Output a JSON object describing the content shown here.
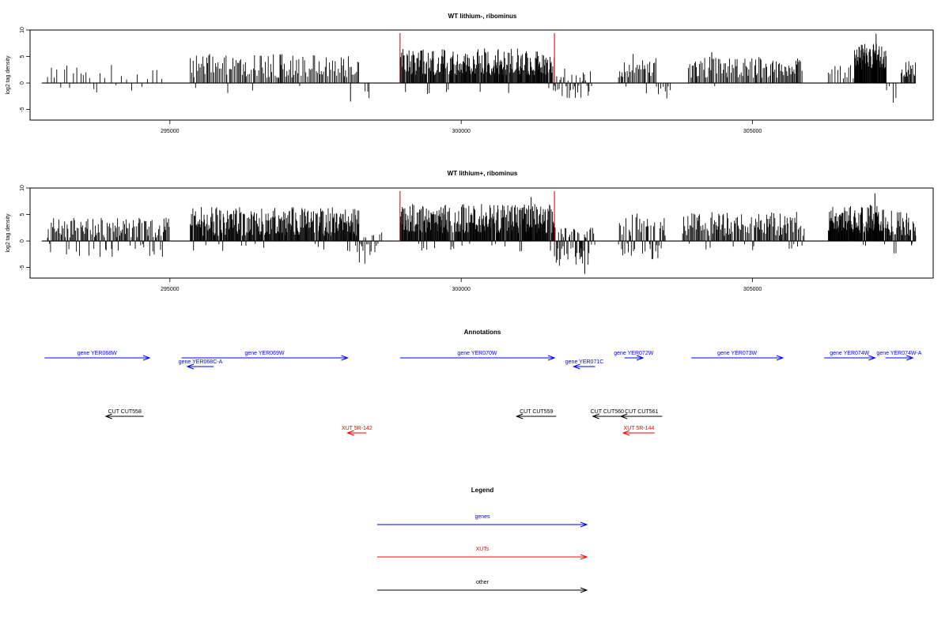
{
  "chart_data": [
    {
      "type": "bar",
      "title": "WT lithium-, ribominus",
      "ylabel": "log2 tag density",
      "xlim": [
        292600,
        308100
      ],
      "ylim": [
        -7,
        10
      ],
      "yticks": [
        -5,
        0,
        5,
        10
      ],
      "xticks": [
        295000,
        300000,
        305000
      ],
      "baseline": [
        292800,
        307800
      ],
      "red_markers": [
        298950,
        301600
      ],
      "segments": [
        {
          "x": [
            292900,
            293800
          ],
          "pos": [
            0.6,
            3.5
          ],
          "neg": [
            -0.4,
            -1.8
          ],
          "density": 0.018,
          "neg_prob": 0.15
        },
        {
          "x": [
            293800,
            294900
          ],
          "pos": [
            0.6,
            3.5
          ],
          "neg": [
            -0.4,
            -1.8
          ],
          "density": 0.012,
          "neg_prob": 0.12
        },
        {
          "x": [
            295350,
            298250
          ],
          "pos": [
            1.0,
            5.5
          ],
          "neg": [
            -0.5,
            -3.2
          ],
          "density": 0.045,
          "neg_prob": 0.04
        },
        {
          "x": [
            298350,
            298450
          ],
          "pos": [
            0,
            0
          ],
          "neg": [
            -1.5,
            -3.0
          ],
          "density": 0.03,
          "neg_prob": 1.0
        },
        {
          "x": [
            298950,
            301600
          ],
          "pos": [
            1.5,
            6.5
          ],
          "neg": [
            -0.5,
            -2.5
          ],
          "density": 0.09,
          "neg_prob": 0.03
        },
        {
          "x": [
            301600,
            302250
          ],
          "pos": [
            0.3,
            3.0
          ],
          "neg": [
            -0.5,
            -3.0
          ],
          "density": 0.05,
          "neg_prob": 0.6
        },
        {
          "x": [
            302700,
            303350
          ],
          "pos": [
            1.0,
            5.5
          ],
          "neg": [
            -0.5,
            -2.0
          ],
          "density": 0.05,
          "neg_prob": 0.05
        },
        {
          "x": [
            303350,
            303600
          ],
          "pos": [
            0,
            0
          ],
          "neg": [
            -0.5,
            -3.2
          ],
          "density": 0.03,
          "neg_prob": 1.0
        },
        {
          "x": [
            303900,
            305850
          ],
          "pos": [
            1.0,
            5.0
          ],
          "neg": [
            -0.5,
            -1.5
          ],
          "density": 0.05,
          "neg_prob": 0.02
        },
        {
          "x": [
            306300,
            306750
          ],
          "pos": [
            0.8,
            3.5
          ],
          "neg": [
            -0.5,
            -1.0
          ],
          "density": 0.025,
          "neg_prob": 0.02
        },
        {
          "x": [
            306750,
            307300
          ],
          "pos": [
            2.5,
            7.5
          ],
          "neg": [
            -0.5,
            -1.0
          ],
          "density": 0.12,
          "neg_prob": 0.0
        },
        {
          "x": [
            307300,
            307500
          ],
          "pos": [
            0,
            0
          ],
          "neg": [
            -0.5,
            -4.2
          ],
          "density": 0.02,
          "neg_prob": 1.0
        },
        {
          "x": [
            307550,
            307800
          ],
          "pos": [
            1.0,
            4.5
          ],
          "neg": [
            -0.5,
            -1.0
          ],
          "density": 0.06,
          "neg_prob": 0.0
        }
      ],
      "peaks": [
        {
          "x": 307120,
          "y": 9.3
        },
        {
          "x": 304300,
          "y": 5.8
        },
        {
          "x": 296900,
          "y": 5.3
        },
        {
          "x": 300400,
          "y": 6.5
        },
        {
          "x": 298100,
          "y": -3.5
        }
      ]
    },
    {
      "type": "bar",
      "title": "WT lithium+, ribominus",
      "ylabel": "log2 tag density",
      "xlim": [
        292600,
        308100
      ],
      "ylim": [
        -7,
        10
      ],
      "yticks": [
        -5,
        0,
        5,
        10
      ],
      "xticks": [
        295000,
        300000,
        305000
      ],
      "baseline": [
        292800,
        307800
      ],
      "red_markers": [
        298950,
        301600
      ],
      "segments": [
        {
          "x": [
            292900,
            295000
          ],
          "pos": [
            0.6,
            4.5
          ],
          "neg": [
            -0.5,
            -3.0
          ],
          "density": 0.06,
          "neg_prob": 0.25
        },
        {
          "x": [
            295350,
            298250
          ],
          "pos": [
            1.0,
            6.5
          ],
          "neg": [
            -0.5,
            -2.0
          ],
          "density": 0.09,
          "neg_prob": 0.03
        },
        {
          "x": [
            298000,
            298650
          ],
          "pos": [
            0.5,
            2.0
          ],
          "neg": [
            -0.5,
            -4.5
          ],
          "density": 0.04,
          "neg_prob": 0.75
        },
        {
          "x": [
            298950,
            301600
          ],
          "pos": [
            1.5,
            7.0
          ],
          "neg": [
            -0.5,
            -2.5
          ],
          "density": 0.1,
          "neg_prob": 0.05
        },
        {
          "x": [
            301600,
            302300
          ],
          "pos": [
            0.5,
            3.0
          ],
          "neg": [
            -0.5,
            -5.0
          ],
          "density": 0.07,
          "neg_prob": 0.65
        },
        {
          "x": [
            302700,
            303500
          ],
          "pos": [
            1.0,
            5.5
          ],
          "neg": [
            -0.5,
            -3.5
          ],
          "density": 0.06,
          "neg_prob": 0.3
        },
        {
          "x": [
            303800,
            305900
          ],
          "pos": [
            1.0,
            5.5
          ],
          "neg": [
            -0.5,
            -2.0
          ],
          "density": 0.06,
          "neg_prob": 0.05
        },
        {
          "x": [
            306300,
            307250
          ],
          "pos": [
            1.5,
            7.0
          ],
          "neg": [
            -0.5,
            -1.5
          ],
          "density": 0.12,
          "neg_prob": 0.02
        },
        {
          "x": [
            307250,
            307800
          ],
          "pos": [
            1.0,
            6.0
          ],
          "neg": [
            -0.5,
            -2.5
          ],
          "density": 0.08,
          "neg_prob": 0.15
        }
      ],
      "peaks": [
        {
          "x": 307100,
          "y": 9.0
        },
        {
          "x": 302120,
          "y": -6.2
        },
        {
          "x": 296800,
          "y": 6.0
        },
        {
          "x": 301200,
          "y": 8.3
        }
      ]
    }
  ],
  "annotations": {
    "title": "Annotations",
    "features": [
      {
        "label": "gene YER068W",
        "start": 292850,
        "end": 294650,
        "strand": "+",
        "class": "gene",
        "row": 0
      },
      {
        "label": "gene YER068C-A",
        "start": 295300,
        "end": 295750,
        "strand": "-",
        "class": "gene",
        "row": 1
      },
      {
        "label": "gene YER069W",
        "start": 295200,
        "end": 298050,
        "strand": "+",
        "class": "gene",
        "row": 0
      },
      {
        "label": "gene YER070W",
        "start": 298950,
        "end": 301600,
        "strand": "+",
        "class": "gene",
        "row": 0
      },
      {
        "label": "gene YER071C",
        "start": 301930,
        "end": 302300,
        "strand": "-",
        "class": "gene",
        "row": 1
      },
      {
        "label": "gene YER072W",
        "start": 302800,
        "end": 303120,
        "strand": "+",
        "class": "gene",
        "row": 0
      },
      {
        "label": "gene YER073W",
        "start": 303950,
        "end": 305520,
        "strand": "+",
        "class": "gene",
        "row": 0
      },
      {
        "label": "gene YER074W",
        "start": 306230,
        "end": 307100,
        "strand": "+",
        "class": "gene",
        "row": 0
      },
      {
        "label": "gene YER074W-A",
        "start": 307280,
        "end": 307750,
        "strand": "+",
        "class": "gene",
        "row": 0
      },
      {
        "label": "CUT CUT558",
        "start": 293900,
        "end": 294550,
        "strand": "-",
        "class": "other",
        "row": 2
      },
      {
        "label": "CUT CUT559",
        "start": 300950,
        "end": 301630,
        "strand": "-",
        "class": "other",
        "row": 2
      },
      {
        "label": "CUT CUT560",
        "start": 302260,
        "end": 302750,
        "strand": "-",
        "class": "other",
        "row": 2
      },
      {
        "label": "CUT CUT561",
        "start": 302740,
        "end": 303450,
        "strand": "-",
        "class": "other",
        "row": 2
      },
      {
        "label": "XUT 5R-142",
        "start": 298050,
        "end": 298370,
        "strand": "-",
        "class": "xut",
        "row": 3
      },
      {
        "label": "XUT 5R-144",
        "start": 302780,
        "end": 303320,
        "strand": "-",
        "class": "xut",
        "row": 3
      }
    ]
  },
  "legend": {
    "title": "Legend",
    "items": [
      {
        "label": "genes",
        "color": "#0000ff"
      },
      {
        "label": "XUTs",
        "color": "#ff0000"
      },
      {
        "label": "other",
        "color": "#000000"
      }
    ]
  },
  "colors": {
    "gene": "#0000ff",
    "xut": "#ff0000",
    "other": "#000000",
    "marker": "#cc0000"
  }
}
